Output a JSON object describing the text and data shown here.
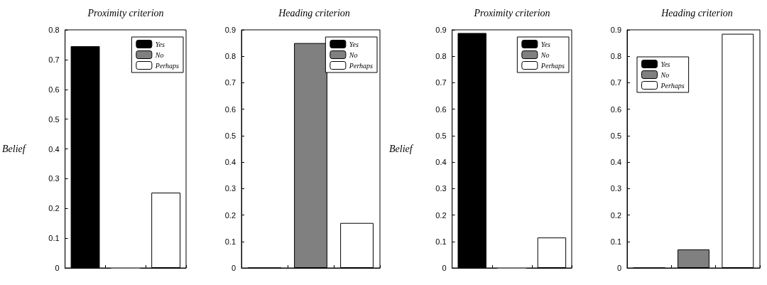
{
  "chart_data": [
    {
      "type": "bar",
      "title": "Proximity criterion",
      "ylabel": "Belief",
      "categories": [
        null,
        null,
        null
      ],
      "series": [
        {
          "name": "Yes",
          "color": "#000000",
          "values": [
            0.745,
            null,
            null
          ]
        },
        {
          "name": "No",
          "color": "#808080",
          "values": [
            null,
            0,
            null
          ]
        },
        {
          "name": "Perhaps",
          "color": "#ffffff",
          "values": [
            null,
            null,
            0.253
          ]
        }
      ],
      "ylim": [
        0,
        0.8
      ],
      "yticks": [
        0,
        0.1,
        0.2,
        0.3,
        0.4,
        0.5,
        0.6,
        0.7,
        0.8
      ],
      "legend": "top right",
      "grid": false
    },
    {
      "type": "bar",
      "title": "Heading criterion",
      "categories": [
        null,
        null,
        null
      ],
      "series": [
        {
          "name": "Yes",
          "color": "#000000",
          "values": [
            0,
            null,
            null
          ]
        },
        {
          "name": "No",
          "color": "#808080",
          "values": [
            null,
            0.85,
            null
          ]
        },
        {
          "name": "Perhaps",
          "color": "#ffffff",
          "values": [
            null,
            null,
            0.17
          ]
        }
      ],
      "ylim": [
        0,
        0.9
      ],
      "yticks": [
        0,
        0.1,
        0.2,
        0.3,
        0.4,
        0.5,
        0.6,
        0.7,
        0.8,
        0.9
      ],
      "legend": "top right",
      "grid": false
    },
    {
      "type": "bar",
      "title": "Proximity criterion",
      "ylabel": "Belief",
      "categories": [
        null,
        null,
        null
      ],
      "series": [
        {
          "name": "Yes",
          "color": "#000000",
          "values": [
            0.888,
            null,
            null
          ]
        },
        {
          "name": "No",
          "color": "#808080",
          "values": [
            null,
            0,
            null
          ]
        },
        {
          "name": "Perhaps",
          "color": "#ffffff",
          "values": [
            null,
            null,
            0.115
          ]
        }
      ],
      "ylim": [
        0,
        0.9
      ],
      "yticks": [
        0,
        0.1,
        0.2,
        0.3,
        0.4,
        0.5,
        0.6,
        0.7,
        0.8,
        0.9
      ],
      "legend": "top right",
      "grid": false
    },
    {
      "type": "bar",
      "title": "Heading criterion",
      "categories": [
        null,
        null,
        null
      ],
      "series": [
        {
          "name": "Yes",
          "color": "#000000",
          "values": [
            0,
            null,
            null
          ]
        },
        {
          "name": "No",
          "color": "#808080",
          "values": [
            null,
            0.07,
            null
          ]
        },
        {
          "name": "Perhaps",
          "color": "#ffffff",
          "values": [
            null,
            null,
            0.885
          ]
        }
      ],
      "ylim": [
        0,
        0.9
      ],
      "yticks": [
        0,
        0.1,
        0.2,
        0.3,
        0.4,
        0.5,
        0.6,
        0.7,
        0.8,
        0.9
      ],
      "legend": "top left",
      "grid": false
    }
  ]
}
